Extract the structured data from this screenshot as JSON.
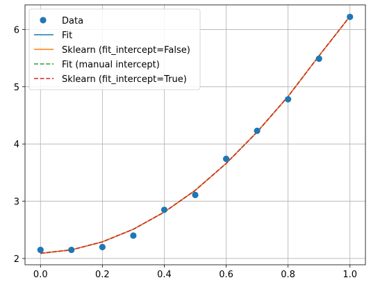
{
  "chart_data": {
    "type": "line",
    "title": "",
    "xlabel": "",
    "ylabel": "",
    "xlim": [
      -0.05,
      1.05
    ],
    "ylim": [
      1.89,
      6.43
    ],
    "xticks": [
      0.0,
      0.2,
      0.4,
      0.6,
      0.8,
      1.0
    ],
    "xtick_labels": [
      "0.0",
      "0.2",
      "0.4",
      "0.6",
      "0.8",
      "1.0"
    ],
    "yticks": [
      2,
      3,
      4,
      5,
      6
    ],
    "ytick_labels": [
      "2",
      "3",
      "4",
      "5",
      "6"
    ],
    "grid": true,
    "legend_position": "top-left",
    "x": [
      0.0,
      0.1,
      0.2,
      0.3,
      0.4,
      0.5,
      0.6,
      0.7,
      0.8,
      0.9,
      1.0
    ],
    "scatter": {
      "name": "Data",
      "color": "#1f77b4",
      "y": [
        2.15,
        2.15,
        2.2,
        2.4,
        2.85,
        3.11,
        3.74,
        4.23,
        4.78,
        5.49,
        6.22
      ]
    },
    "series": [
      {
        "name": "Fit",
        "style": "solid",
        "color": "#1f77b4",
        "y": [
          2.09,
          2.15,
          2.29,
          2.51,
          2.81,
          3.19,
          3.66,
          4.21,
          4.83,
          5.54,
          6.23
        ]
      },
      {
        "name": "Sklearn (fit_intercept=False)",
        "style": "solid",
        "color": "#ff7f0e",
        "y": [
          2.09,
          2.15,
          2.29,
          2.51,
          2.81,
          3.19,
          3.66,
          4.21,
          4.83,
          5.54,
          6.23
        ]
      },
      {
        "name": "Fit (manual intercept)",
        "style": "dashed",
        "color": "#2ca02c",
        "y": [
          2.09,
          2.15,
          2.29,
          2.51,
          2.81,
          3.19,
          3.66,
          4.21,
          4.83,
          5.54,
          6.23
        ]
      },
      {
        "name": "Sklearn (fit_intercept=True)",
        "style": "dashed",
        "color": "#d62728",
        "y": [
          2.09,
          2.15,
          2.29,
          2.51,
          2.81,
          3.19,
          3.66,
          4.21,
          4.83,
          5.54,
          6.23
        ]
      }
    ]
  }
}
